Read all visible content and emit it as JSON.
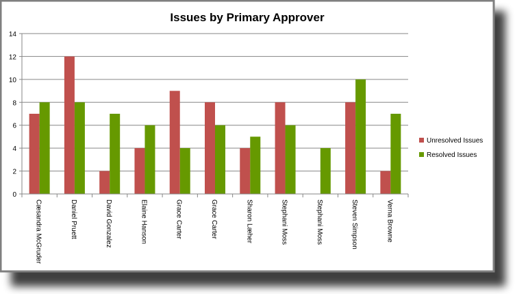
{
  "chart_data": {
    "type": "bar",
    "title": "Issues by Primary Approver",
    "xlabel": "",
    "ylabel": "",
    "ylim": [
      0,
      14
    ],
    "yticks": [
      0,
      2,
      4,
      6,
      8,
      10,
      12,
      14
    ],
    "grid": true,
    "legend_position": "right",
    "categories": [
      "Cæsandra McGruder",
      "Daniel Pruett",
      "David Gonzalez",
      "Elaine Hanson",
      "Grace Carter",
      "Grace Carter",
      "Sharon Læher",
      "Stephani Moss",
      "Stephani Moss",
      "Steven Simpson",
      "Verna Browne"
    ],
    "series": [
      {
        "name": "Unresolved Issues",
        "color": "#c0504d",
        "values": [
          7,
          12,
          2,
          4,
          9,
          8,
          4,
          8,
          0,
          8,
          2
        ]
      },
      {
        "name": "Resolved Issues",
        "color": "#669900",
        "values": [
          8,
          8,
          7,
          6,
          4,
          6,
          5,
          6,
          4,
          10,
          7
        ]
      }
    ]
  }
}
